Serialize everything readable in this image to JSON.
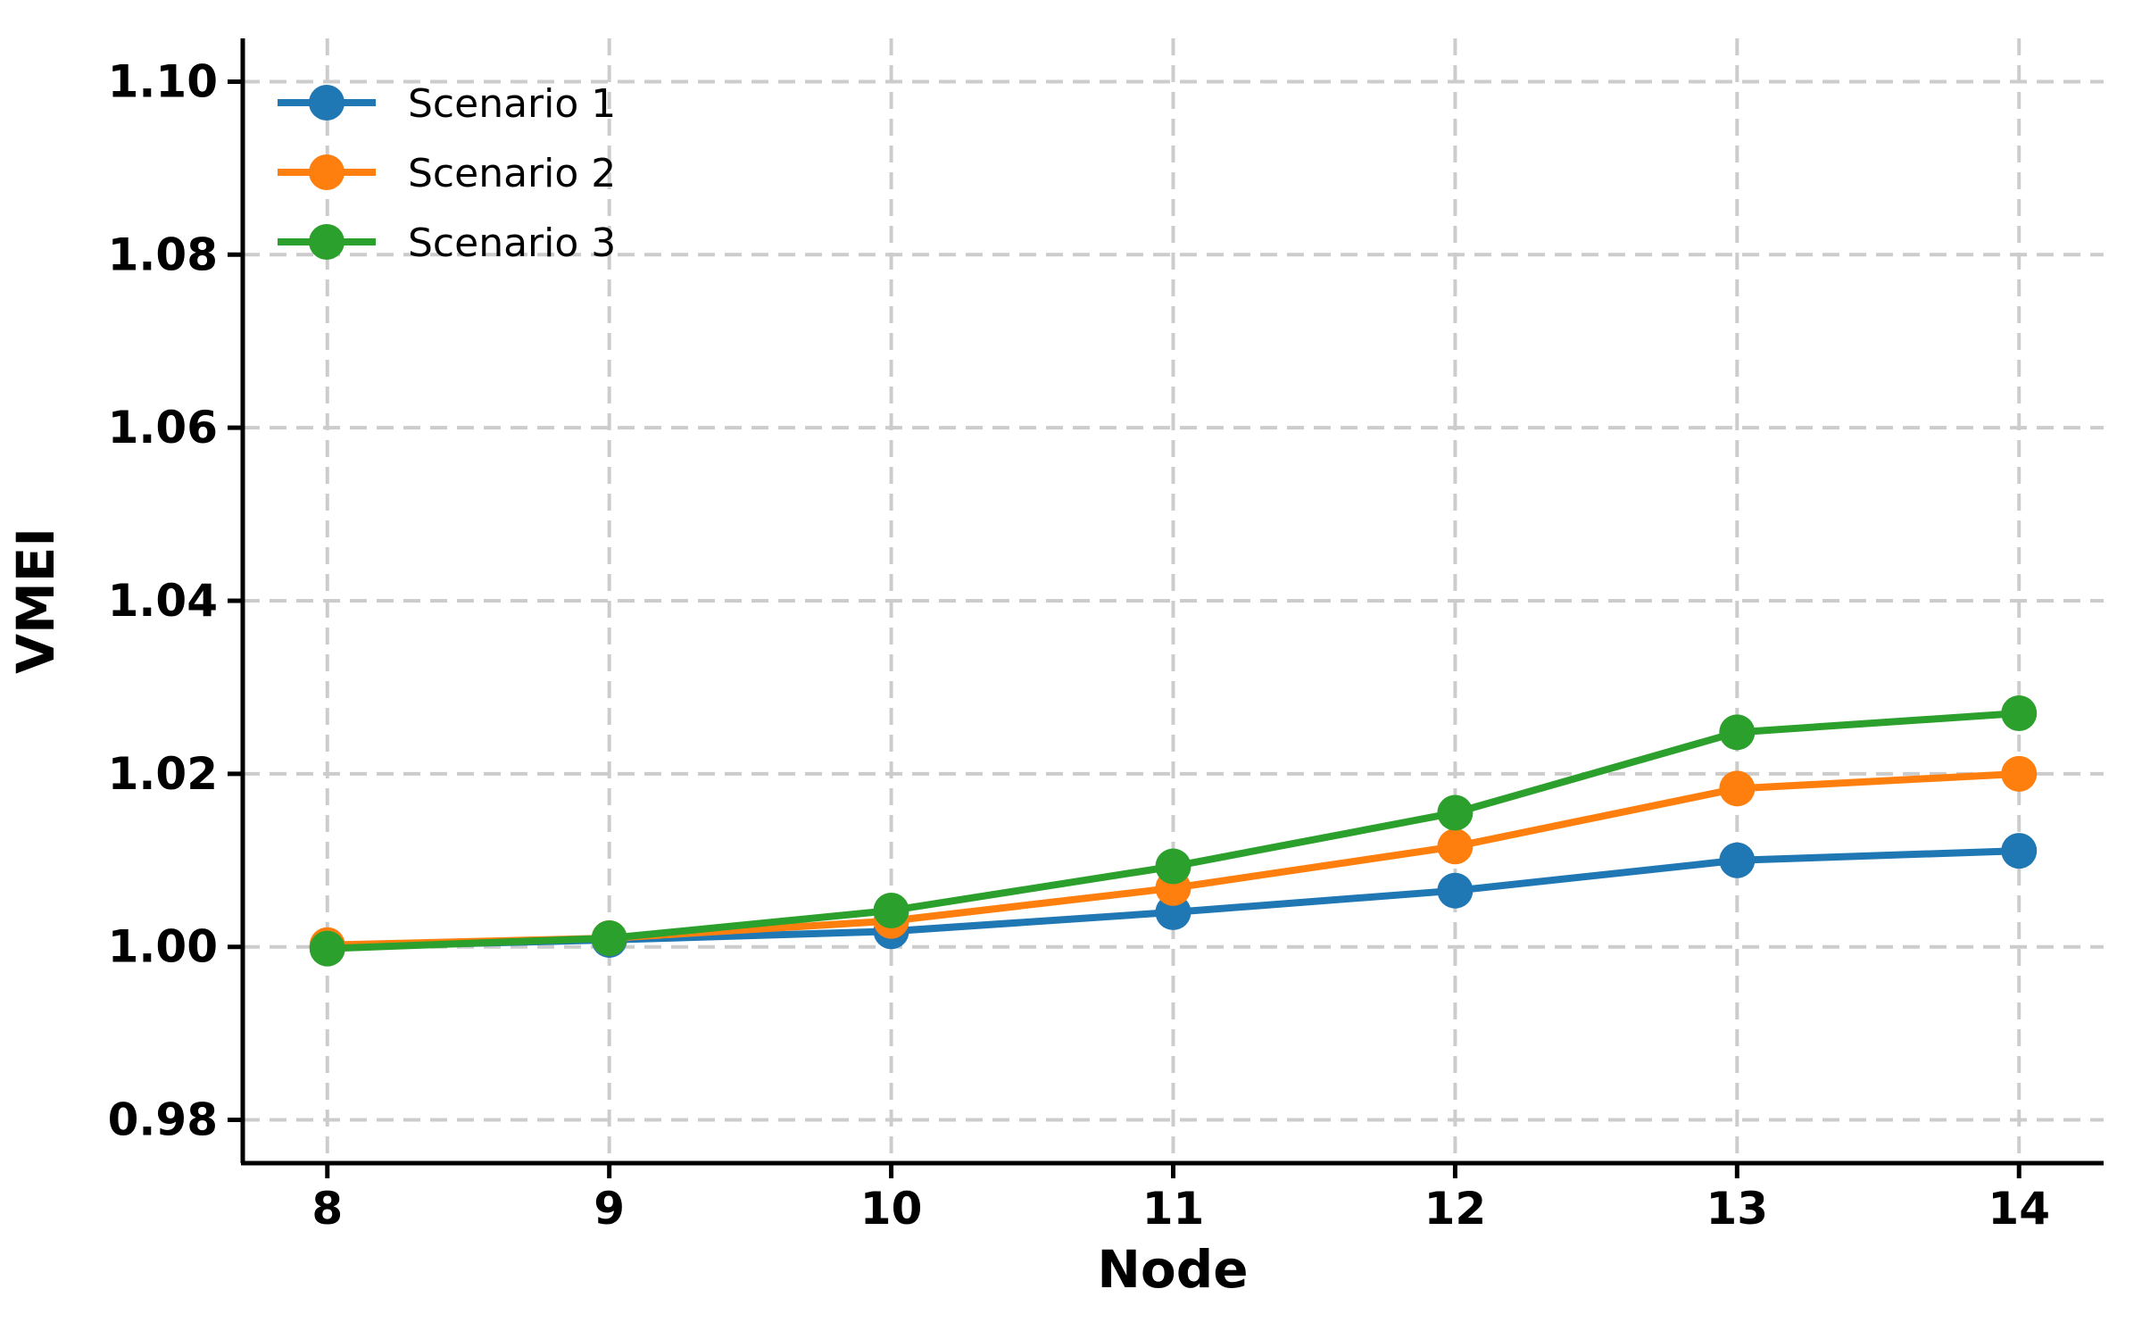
{
  "chart_data": {
    "type": "line",
    "title": "",
    "xlabel": "Node",
    "ylabel": "VMEI",
    "x": [
      8,
      9,
      10,
      11,
      12,
      13,
      14
    ],
    "series": [
      {
        "name": "Scenario 1",
        "color": "#1f77b4",
        "values": [
          1.0,
          1.0008,
          1.0018,
          1.004,
          1.0065,
          1.01,
          1.0111
        ]
      },
      {
        "name": "Scenario 2",
        "color": "#ff7f0e",
        "values": [
          1.0002,
          1.001,
          1.003,
          1.0068,
          1.0116,
          1.0183,
          1.02
        ]
      },
      {
        "name": "Scenario 3",
        "color": "#2ca02c",
        "values": [
          0.9998,
          1.001,
          1.0042,
          1.0093,
          1.0155,
          1.0248,
          1.027
        ]
      }
    ],
    "x_ticks": [
      8,
      9,
      10,
      11,
      12,
      13,
      14
    ],
    "y_ticks": [
      0.98,
      1.0,
      1.02,
      1.04,
      1.06,
      1.08,
      1.1
    ],
    "xlim": [
      7.7,
      14.3
    ],
    "ylim": [
      0.975,
      1.105
    ],
    "grid": true,
    "grid_color": "#cccccc",
    "axis_color": "#000000",
    "legend_position": "upper-left",
    "legend_frame": false,
    "marker": "circle"
  }
}
